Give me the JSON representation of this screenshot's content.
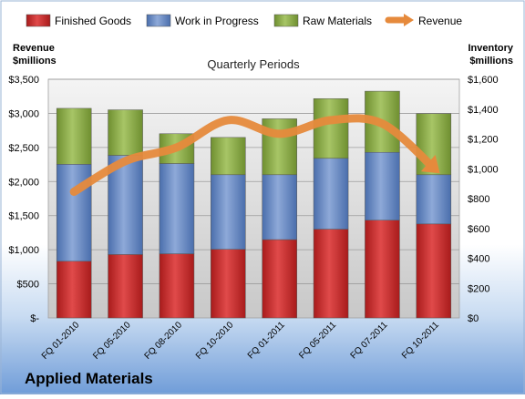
{
  "company": "Applied Materials",
  "chart_data": {
    "type": "bar",
    "stacked": true,
    "subtitle": "Quarterly Periods",
    "ylabel_left": [
      "Revenue",
      "$millions"
    ],
    "ylabel_right": [
      "Inventory",
      "$millions"
    ],
    "categories": [
      "FQ 01-2010",
      "FQ 05-2010",
      "FQ 08-2010",
      "FQ 10-2010",
      "FQ 01-2011",
      "FQ 05-2011",
      "FQ 07-2011",
      "FQ 10-2011"
    ],
    "left_ticks": [
      "$-",
      "$500",
      "$1,000",
      "$1,500",
      "$2,000",
      "$2,500",
      "$3,000",
      "$3,500"
    ],
    "right_ticks": [
      "$0",
      "$200",
      "$400",
      "$600",
      "$800",
      "$1,000",
      "$1,200",
      "$1,400",
      "$1,600"
    ],
    "ylim_left": [
      0,
      3500
    ],
    "ylim_right": [
      0,
      1600
    ],
    "series": [
      {
        "name": "Finished Goods",
        "axis": "right",
        "color": "#cc2a2a",
        "values": [
          380,
          425,
          430,
          460,
          525,
          595,
          655,
          630
        ]
      },
      {
        "name": "Work in Progress",
        "axis": "right",
        "color": "#5d82c2",
        "values": [
          650,
          665,
          605,
          500,
          435,
          475,
          455,
          330
        ]
      },
      {
        "name": "Raw Materials",
        "axis": "right",
        "color": "#88aa44",
        "values": [
          375,
          305,
          200,
          250,
          375,
          400,
          410,
          410
        ]
      },
      {
        "name": "Revenue",
        "axis": "left",
        "type": "line",
        "color": "#e68a3c",
        "values": [
          1850,
          2300,
          2500,
          2900,
          2700,
          2900,
          2850,
          2200
        ]
      }
    ],
    "legend": {
      "position": "top"
    },
    "grid": true
  }
}
